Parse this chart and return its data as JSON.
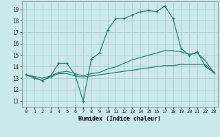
{
  "xlabel": "Humidex (Indice chaleur)",
  "background_color": "#cce9e9",
  "grid_color": "#aad0d0",
  "line_color": "#2d7d6e",
  "xlim": [
    -0.5,
    23.5
  ],
  "ylim": [
    10.5,
    19.7
  ],
  "yticks": [
    11,
    12,
    13,
    14,
    15,
    16,
    17,
    18,
    19
  ],
  "xticks": [
    0,
    1,
    2,
    3,
    4,
    5,
    6,
    7,
    8,
    9,
    10,
    11,
    12,
    13,
    14,
    15,
    16,
    17,
    18,
    19,
    20,
    21,
    22,
    23
  ],
  "line1_x": [
    0,
    1,
    2,
    3,
    4,
    5,
    6,
    7,
    8,
    9,
    10,
    11,
    12,
    13,
    14,
    15,
    16,
    17,
    18,
    19,
    20,
    21,
    22,
    23
  ],
  "line1_y": [
    13.3,
    13.0,
    12.8,
    13.2,
    14.3,
    14.3,
    13.3,
    11.0,
    14.7,
    15.2,
    17.2,
    18.2,
    18.2,
    18.5,
    18.8,
    18.9,
    18.8,
    19.3,
    18.2,
    15.6,
    15.0,
    15.3,
    14.0,
    13.5
  ],
  "line2_x": [
    0,
    2,
    3,
    4,
    5,
    6,
    7,
    8,
    9,
    10,
    11,
    12,
    13,
    14,
    15,
    16,
    17,
    18,
    19,
    20,
    21,
    22,
    23
  ],
  "line2_y": [
    13.3,
    12.8,
    13.1,
    13.4,
    13.4,
    13.2,
    13.1,
    13.2,
    13.3,
    13.4,
    13.5,
    13.6,
    13.7,
    13.8,
    13.9,
    14.0,
    14.1,
    14.1,
    14.2,
    14.2,
    14.2,
    14.2,
    13.5
  ],
  "line3_x": [
    0,
    2,
    3,
    4,
    5,
    6,
    7,
    8,
    9,
    10,
    11,
    12,
    13,
    14,
    15,
    16,
    17,
    18,
    19,
    20,
    21,
    22,
    23
  ],
  "line3_y": [
    13.3,
    13.0,
    13.2,
    13.5,
    13.6,
    13.4,
    13.2,
    13.4,
    13.5,
    13.8,
    14.0,
    14.3,
    14.6,
    14.8,
    15.0,
    15.2,
    15.4,
    15.4,
    15.3,
    15.1,
    15.2,
    14.5,
    13.5
  ]
}
